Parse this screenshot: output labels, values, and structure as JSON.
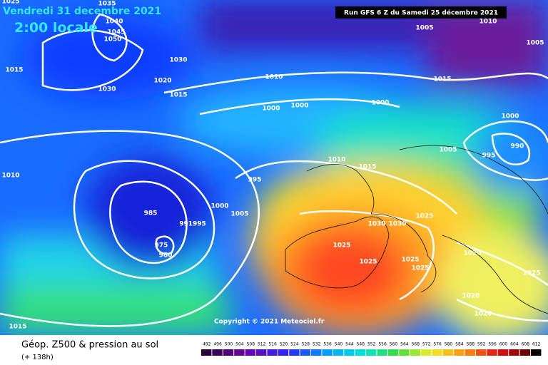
{
  "header": {
    "date": "Vendredi 31 decembre 2021",
    "time": "2:00 locale",
    "run": "Run GFS 6 Z du Samedi 25 décembre 2021"
  },
  "isobar_labels": [
    "1025",
    "1035",
    "1040",
    "1045",
    "1050",
    "1030",
    "1015",
    "1020",
    "1030",
    "1015",
    "1010",
    "1015",
    "1005",
    "1010",
    "1005",
    "1000",
    "1000",
    "1000",
    "1000",
    "990",
    "995",
    "1005",
    "1010",
    "1015",
    "1010",
    "995",
    "985",
    "1000",
    "1005",
    "991995",
    "975",
    "980",
    "1025",
    "1030",
    "1030",
    "1025",
    "1025",
    "1025",
    "1025",
    "1020",
    "1025",
    "1020",
    "1020",
    "1015"
  ],
  "copyright": "Copyright © 2021 Meteociel.fr",
  "footer": {
    "title": "Géop. Z500 & pression au sol",
    "subtitle": "(+ 138h)"
  },
  "legend": {
    "values": [
      492,
      496,
      500,
      504,
      508,
      512,
      516,
      520,
      524,
      528,
      532,
      536,
      540,
      544,
      548,
      552,
      556,
      560,
      564,
      568,
      572,
      576,
      580,
      584,
      588,
      592,
      596,
      600,
      604,
      608,
      612
    ]
  }
}
